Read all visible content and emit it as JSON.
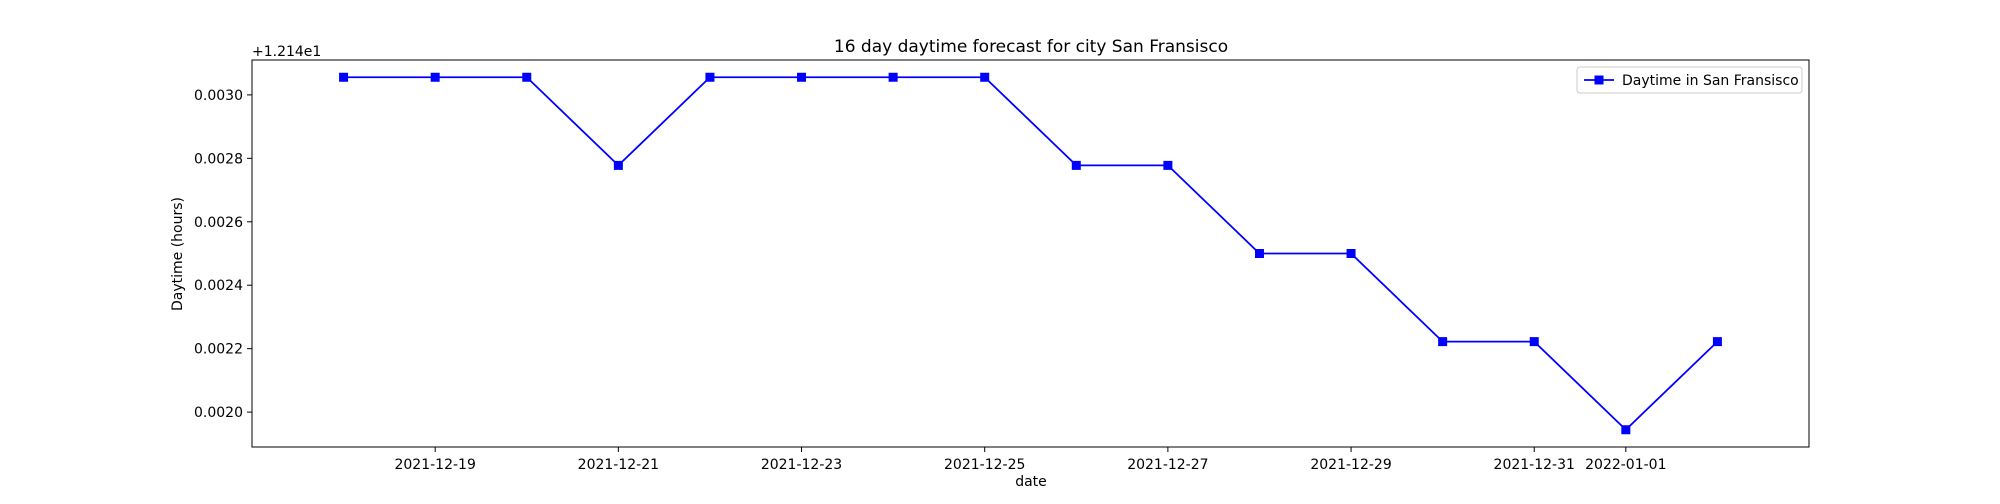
{
  "chart_data": {
    "type": "line",
    "title": "16 day daytime forecast for city San Fransisco",
    "xlabel": "date",
    "ylabel": "Daytime (hours)",
    "y_offset_label": "+1.214e1",
    "x": [
      "2021-12-18",
      "2021-12-19",
      "2021-12-20",
      "2021-12-21",
      "2021-12-22",
      "2021-12-23",
      "2021-12-24",
      "2021-12-25",
      "2021-12-26",
      "2021-12-27",
      "2021-12-28",
      "2021-12-29",
      "2021-12-30",
      "2021-12-31",
      "2022-01-01",
      "2022-01-02"
    ],
    "series": [
      {
        "name": "Daytime in San Fransisco",
        "values": [
          0.0030556,
          0.0030556,
          0.0030556,
          0.0027778,
          0.0030556,
          0.0030556,
          0.0030556,
          0.0030556,
          0.0027778,
          0.0027778,
          0.0025,
          0.0025,
          0.0022222,
          0.0022222,
          0.0019444,
          0.0022222
        ],
        "color": "#0000ff",
        "marker": "square"
      }
    ],
    "x_ticks": [
      "2021-12-19",
      "2021-12-21",
      "2021-12-23",
      "2021-12-25",
      "2021-12-27",
      "2021-12-29",
      "2021-12-31",
      "2022-01-01"
    ],
    "y_ticks": [
      "0.0020",
      "0.0022",
      "0.0024",
      "0.0026",
      "0.0028",
      "0.0030"
    ],
    "xlim": [
      "2021-12-17",
      "2022-01-03"
    ],
    "ylim": [
      0.00189,
      0.00311
    ],
    "grid": false,
    "legend_position": "top-right"
  }
}
